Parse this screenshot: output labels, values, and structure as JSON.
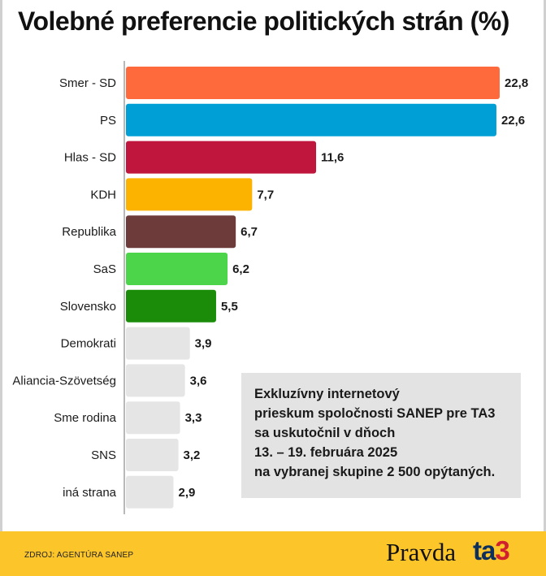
{
  "title": "Volebné preferencie politických strán (%)",
  "chart_data": {
    "type": "bar",
    "orientation": "horizontal",
    "categories": [
      "Smer - SD",
      "PS",
      "Hlas - SD",
      "KDH",
      "Republika",
      "SaS",
      "Slovensko",
      "Demokrati",
      "Aliancia-Szövetség",
      "Sme rodina",
      "SNS",
      "iná strana"
    ],
    "values": [
      22.8,
      22.6,
      11.6,
      7.7,
      6.7,
      6.2,
      5.5,
      3.9,
      3.6,
      3.3,
      3.2,
      2.9
    ],
    "value_labels": [
      "22,8",
      "22,6",
      "11,6",
      "7,7",
      "6,7",
      "6,2",
      "5,5",
      "3,9",
      "3,6",
      "3,3",
      "3,2",
      "2,9"
    ],
    "colors": [
      "#ff6a3d",
      "#00a0d6",
      "#c0153c",
      "#fbb300",
      "#6e3b3b",
      "#4cd44a",
      "#1a8c0a",
      "#e5e5e5",
      "#e5e5e5",
      "#e5e5e5",
      "#e5e5e5",
      "#e5e5e5"
    ],
    "xlim": [
      0,
      22.8
    ],
    "grid": false
  },
  "note": {
    "lines": [
      "Exkluzívny internetový",
      "prieskum spoločnosti SANEP pre TA3",
      "sa uskutočnil v dňoch",
      "13. – 19. februára 2025",
      "na vybranej skupine 2 500 opýtaných."
    ]
  },
  "footer": {
    "source": "ZDROJ: AGENTÚRA SANEP",
    "logo_pravda": "Pravda",
    "logo_ta3_prefix": "ta",
    "logo_ta3_suffix": "3"
  }
}
